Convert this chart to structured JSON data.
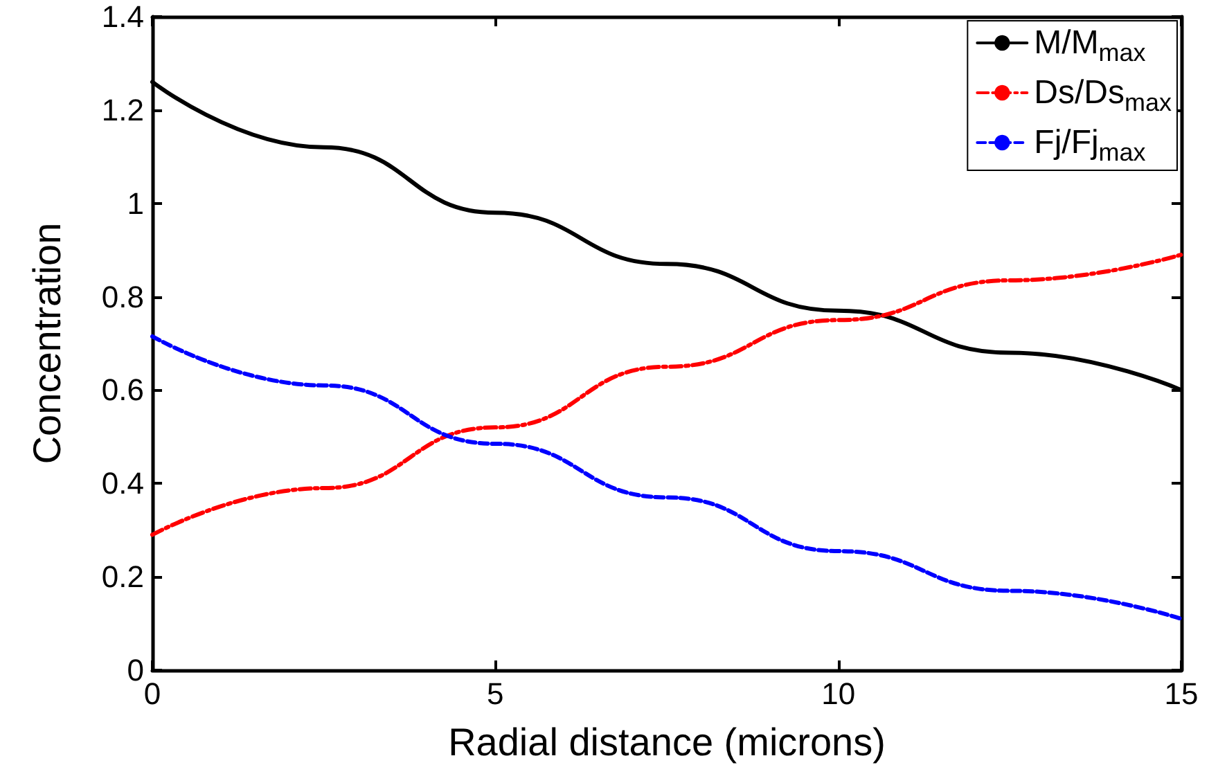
{
  "chart_data": {
    "type": "line",
    "xlabel": "Radial distance (microns)",
    "ylabel": "Concentration",
    "x": [
      0,
      2.5,
      5,
      7.5,
      10,
      12.5,
      15
    ],
    "series": [
      {
        "name": "M/M$_{max}$",
        "color": "#000000",
        "line_style": "solid",
        "values": [
          1.26,
          1.12,
          0.98,
          0.87,
          0.77,
          0.68,
          0.6
        ]
      },
      {
        "name": "Ds/Ds$_{max}$",
        "color": "#ff0000",
        "line_style": "dashdot",
        "values": [
          0.29,
          0.39,
          0.52,
          0.65,
          0.75,
          0.835,
          0.89
        ]
      },
      {
        "name": "Fj/Fj$_{max}$",
        "color": "#0000ff",
        "line_style": "dashed",
        "values": [
          0.715,
          0.61,
          0.485,
          0.37,
          0.255,
          0.17,
          0.11
        ]
      }
    ],
    "xlim": [
      0,
      15
    ],
    "xticks": [
      0,
      5,
      10,
      15
    ],
    "ylim": [
      0,
      1.4
    ],
    "yticks": [
      0,
      0.2,
      0.4,
      0.6,
      0.8,
      1,
      1.2,
      1.4
    ],
    "grid": false,
    "legend": "top right",
    "marker": "none"
  }
}
